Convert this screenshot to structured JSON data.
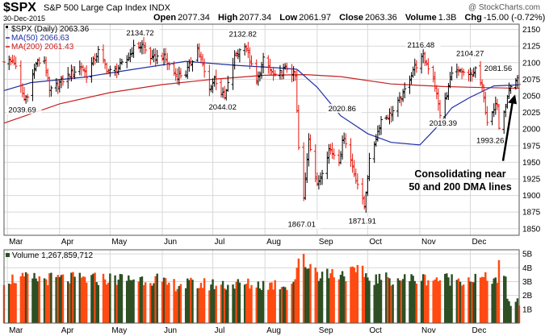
{
  "header": {
    "symbol": "$SPX",
    "name": "S&P 500 Large Cap Index",
    "exchange": "INDX",
    "copyright": "@ StockCharts.com",
    "date": "30-Dec-2015",
    "open_label": "Open",
    "open": "2077.34",
    "high_label": "High",
    "high": "2077.34",
    "low_label": "Low",
    "low": "2061.97",
    "close_label": "Close",
    "close": "2063.36",
    "volume_label": "Volume",
    "volume": "1.3B",
    "chg_label": "Chg",
    "chg": "-15.00 (-0.72%)"
  },
  "legend": {
    "price": "$SPX (Daily) 2063.36",
    "ma50": "MA(50) 2066.63",
    "ma200": "MA(200) 2061.43",
    "volume": "Volume 1,267,859,712"
  },
  "annotation": {
    "line1": "Consolidating near",
    "line2": "50 and 200 DMA lines"
  },
  "colors": {
    "up": "#000000",
    "down": "#e8170d",
    "ma50": "#1f2fa6",
    "ma200": "#c62020",
    "vol_up": "#2e4f24",
    "vol_down": "#ff4a12",
    "grid": "#d8d8d8",
    "accent_blue": "#1f3fbf"
  },
  "chart_data": [
    {
      "type": "ohlc",
      "title": "$SPX (Daily) 2063.36",
      "x_ticks": [
        "Mar",
        "Apr",
        "May",
        "Jun",
        "Jul",
        "Aug",
        "Sep",
        "Oct",
        "Nov",
        "Dec"
      ],
      "y_ticks": [
        1850,
        1875,
        1900,
        1925,
        1950,
        1975,
        2000,
        2025,
        2050,
        2075,
        2100,
        2125,
        2150
      ],
      "ylim": [
        1840,
        2158
      ],
      "x_start": "2015-02-27",
      "x_end": "2015-12-30",
      "grid": true,
      "annotations": [
        {
          "label": "2039.69",
          "date": "2015-03-11",
          "value": 2039.69,
          "pos": "below"
        },
        {
          "label": "2134.72",
          "date": "2015-05-20",
          "value": 2134.72,
          "pos": "above"
        },
        {
          "label": "2044.02",
          "date": "2015-07-08",
          "value": 2044.02,
          "pos": "below"
        },
        {
          "label": "2132.82",
          "date": "2015-07-20",
          "value": 2132.82,
          "pos": "above"
        },
        {
          "label": "1867.01",
          "date": "2015-08-24",
          "value": 1867.01,
          "pos": "below"
        },
        {
          "label": "2020.86",
          "date": "2015-09-17",
          "value": 2020.86,
          "pos": "above"
        },
        {
          "label": "1871.91",
          "date": "2015-09-29",
          "value": 1871.91,
          "pos": "below"
        },
        {
          "label": "2116.48",
          "date": "2015-11-03",
          "value": 2116.48,
          "pos": "above"
        },
        {
          "label": "2019.39",
          "date": "2015-11-16",
          "value": 2019.39,
          "pos": "below"
        },
        {
          "label": "2104.27",
          "date": "2015-12-02",
          "value": 2104.27,
          "pos": "above"
        },
        {
          "label": "1993.26",
          "date": "2015-12-14",
          "value": 1993.26,
          "pos": "below"
        },
        {
          "label": "2081.56",
          "date": "2015-12-29",
          "value": 2081.56,
          "pos": "above"
        }
      ],
      "close_points": [
        [
          "2015-02-27",
          2104
        ],
        [
          "2015-03-05",
          2101
        ],
        [
          "2015-03-11",
          2044
        ],
        [
          "2015-03-13",
          2053
        ],
        [
          "2015-03-18",
          2099
        ],
        [
          "2015-03-23",
          2104
        ],
        [
          "2015-03-26",
          2056
        ],
        [
          "2015-03-31",
          2068
        ],
        [
          "2015-04-06",
          2080
        ],
        [
          "2015-04-14",
          2095
        ],
        [
          "2015-04-17",
          2081
        ],
        [
          "2015-04-24",
          2117
        ],
        [
          "2015-04-30",
          2086
        ],
        [
          "2015-05-05",
          2089
        ],
        [
          "2015-05-11",
          2105
        ],
        [
          "2015-05-15",
          2122
        ],
        [
          "2015-05-20",
          2126
        ],
        [
          "2015-05-26",
          2105
        ],
        [
          "2015-06-01",
          2111
        ],
        [
          "2015-06-09",
          2080
        ],
        [
          "2015-06-15",
          2084
        ],
        [
          "2015-06-22",
          2122
        ],
        [
          "2015-06-29",
          2058
        ],
        [
          "2015-07-02",
          2077
        ],
        [
          "2015-07-08",
          2046
        ],
        [
          "2015-07-14",
          2108
        ],
        [
          "2015-07-20",
          2129
        ],
        [
          "2015-07-27",
          2068
        ],
        [
          "2015-07-31",
          2104
        ],
        [
          "2015-08-07",
          2078
        ],
        [
          "2015-08-14",
          2092
        ],
        [
          "2015-08-19",
          2079
        ],
        [
          "2015-08-21",
          1971
        ],
        [
          "2015-08-24",
          1894
        ],
        [
          "2015-08-27",
          1988
        ],
        [
          "2015-09-01",
          1914
        ],
        [
          "2015-09-08",
          1970
        ],
        [
          "2015-09-14",
          1954
        ],
        [
          "2015-09-17",
          1990
        ],
        [
          "2015-09-22",
          1943
        ],
        [
          "2015-09-29",
          1884
        ],
        [
          "2015-10-02",
          1951
        ],
        [
          "2015-10-09",
          2014
        ],
        [
          "2015-10-15",
          2023
        ],
        [
          "2015-10-22",
          2052
        ],
        [
          "2015-10-28",
          2090
        ],
        [
          "2015-11-03",
          2109
        ],
        [
          "2015-11-09",
          2078
        ],
        [
          "2015-11-13",
          2023
        ],
        [
          "2015-11-17",
          2050
        ],
        [
          "2015-11-20",
          2089
        ],
        [
          "2015-11-30",
          2080
        ],
        [
          "2015-12-02",
          2079
        ],
        [
          "2015-12-04",
          2091
        ],
        [
          "2015-12-08",
          2063
        ],
        [
          "2015-12-11",
          2012
        ],
        [
          "2015-12-14",
          2021
        ],
        [
          "2015-12-17",
          2041
        ],
        [
          "2015-12-18",
          2005
        ],
        [
          "2015-12-22",
          2038
        ],
        [
          "2015-12-24",
          2060
        ],
        [
          "2015-12-29",
          2078
        ],
        [
          "2015-12-30",
          2063
        ]
      ],
      "ma50_points": [
        [
          "2015-02-27",
          2058
        ],
        [
          "2015-03-15",
          2070
        ],
        [
          "2015-04-15",
          2078
        ],
        [
          "2015-05-15",
          2090
        ],
        [
          "2015-06-15",
          2102
        ],
        [
          "2015-07-15",
          2096
        ],
        [
          "2015-08-10",
          2092
        ],
        [
          "2015-08-20",
          2090
        ],
        [
          "2015-09-01",
          2063
        ],
        [
          "2015-09-15",
          2020
        ],
        [
          "2015-10-01",
          1993
        ],
        [
          "2015-10-15",
          1980
        ],
        [
          "2015-11-01",
          1976
        ],
        [
          "2015-11-10",
          2000
        ],
        [
          "2015-11-20",
          2032
        ],
        [
          "2015-12-01",
          2048
        ],
        [
          "2015-12-15",
          2065
        ],
        [
          "2015-12-30",
          2066.63
        ]
      ],
      "ma200_points": [
        [
          "2015-02-27",
          2009
        ],
        [
          "2015-04-01",
          2038
        ],
        [
          "2015-05-01",
          2055
        ],
        [
          "2015-06-01",
          2067
        ],
        [
          "2015-07-01",
          2075
        ],
        [
          "2015-08-01",
          2081
        ],
        [
          "2015-08-25",
          2082
        ],
        [
          "2015-09-15",
          2079
        ],
        [
          "2015-10-15",
          2068
        ],
        [
          "2015-11-15",
          2064
        ],
        [
          "2015-12-01",
          2063
        ],
        [
          "2015-12-30",
          2061.43
        ]
      ]
    },
    {
      "type": "bar",
      "title": "Volume 1,267,859,712",
      "x_ticks": [
        "Mar",
        "Apr",
        "May",
        "Jun",
        "Jul",
        "Aug",
        "Sep",
        "Oct",
        "Nov",
        "Dec"
      ],
      "y_ticks": [
        "1B",
        "2B",
        "3B",
        "4B",
        "5B"
      ],
      "ylim": [
        0,
        5.3
      ],
      "unit": "billions of shares",
      "last_value": 1.27,
      "peaks": [
        {
          "date": "2015-08-24",
          "value": 5.0
        },
        {
          "date": "2015-12-18",
          "value": 4.55
        }
      ]
    }
  ]
}
